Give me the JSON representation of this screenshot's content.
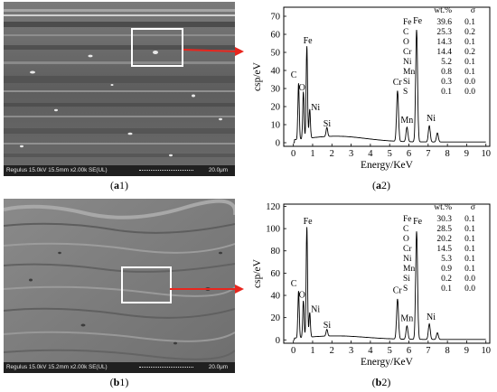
{
  "panels": {
    "a1": {
      "label": "(a1)",
      "label_letter": "a",
      "label_num": "1",
      "sem_info": "Regulus 15.0kV 15.5mm x2.00k SE(UL)",
      "scale": "20.0μm"
    },
    "a2": {
      "label": "(a2)",
      "label_letter": "a",
      "label_num": "2"
    },
    "b1": {
      "label": "(b1)",
      "label_letter": "b",
      "label_num": "1",
      "sem_info": "Regulus 15.0kV 15.2mm x2.00k SE(UL)",
      "scale": "20.0μm"
    },
    "b2": {
      "label": "(b2)",
      "label_letter": "b",
      "label_num": "2"
    }
  },
  "colors": {
    "arrow": "#e8261e",
    "roi": "#ffffff",
    "sem_bg": "#6b6b6b"
  },
  "chart_data": [
    {
      "id": "a2",
      "type": "line",
      "xlabel": "Energy/KeV",
      "ylabel": "csp/eV",
      "xlim": [
        -0.5,
        10.2
      ],
      "ylim": [
        -2,
        75
      ],
      "xticks": [
        0,
        1,
        2,
        3,
        4,
        5,
        6,
        7,
        8,
        9,
        10
      ],
      "yticks": [
        0,
        10,
        20,
        30,
        40,
        50,
        60,
        70
      ],
      "peaks": [
        {
          "label": "C",
          "x": 0.27,
          "y": 31,
          "w": 0.05
        },
        {
          "label": "O",
          "x": 0.52,
          "y": 26,
          "w": 0.05
        },
        {
          "label": "Fe",
          "x": 0.7,
          "y": 51,
          "w": 0.05
        },
        {
          "label": "Ni",
          "x": 0.85,
          "y": 16,
          "w": 0.05
        },
        {
          "label": "Si",
          "x": 1.74,
          "y": 5,
          "w": 0.06
        },
        {
          "label": "Cr",
          "x": 5.41,
          "y": 28,
          "w": 0.07
        },
        {
          "label": "Mn",
          "x": 5.9,
          "y": 8,
          "w": 0.07
        },
        {
          "label": "Fe",
          "x": 6.4,
          "y": 62,
          "w": 0.07
        },
        {
          "label": "Ni",
          "x": 7.06,
          "y": 9,
          "w": 0.07
        },
        {
          "label": "",
          "x": 7.48,
          "y": 5,
          "w": 0.07
        }
      ],
      "peak_labels": [
        {
          "text": "C",
          "x": 0.02,
          "y": 36
        },
        {
          "text": "O",
          "x": 0.45,
          "y": 29
        },
        {
          "text": "Fe",
          "x": 0.75,
          "y": 55
        },
        {
          "text": "Ni",
          "x": 1.15,
          "y": 18
        },
        {
          "text": "Si",
          "x": 1.75,
          "y": 9
        },
        {
          "text": "Cr",
          "x": 5.4,
          "y": 32
        },
        {
          "text": "Mn",
          "x": 5.9,
          "y": 11
        },
        {
          "text": "Fe",
          "x": 6.45,
          "y": 66
        },
        {
          "text": "Ni",
          "x": 7.15,
          "y": 12
        }
      ],
      "composition": {
        "headers": [
          "wt.%",
          "σ"
        ],
        "rows": [
          {
            "element": "Fe",
            "wt": "39.6",
            "sigma": "0.1"
          },
          {
            "element": "C",
            "wt": "25.3",
            "sigma": "0.2"
          },
          {
            "element": "O",
            "wt": "14.3",
            "sigma": "0.1"
          },
          {
            "element": "Cr",
            "wt": "14.4",
            "sigma": "0.2"
          },
          {
            "element": "Ni",
            "wt": "5.2",
            "sigma": "0.1"
          },
          {
            "element": "Mn",
            "wt": "0.8",
            "sigma": "0.1"
          },
          {
            "element": "Si",
            "wt": "0.3",
            "sigma": "0.0"
          },
          {
            "element": "S",
            "wt": "0.1",
            "sigma": "0.0"
          }
        ]
      }
    },
    {
      "id": "b2",
      "type": "line",
      "xlabel": "Energy/KeV",
      "ylabel": "csp/eV",
      "xlim": [
        -0.5,
        10.2
      ],
      "ylim": [
        -3,
        122
      ],
      "xticks": [
        0,
        1,
        2,
        3,
        4,
        5,
        6,
        7,
        8,
        9,
        10
      ],
      "yticks": [
        0,
        20,
        40,
        60,
        80,
        100,
        120
      ],
      "peaks": [
        {
          "label": "C",
          "x": 0.27,
          "y": 42,
          "w": 0.05
        },
        {
          "label": "O",
          "x": 0.52,
          "y": 33,
          "w": 0.05
        },
        {
          "label": "Fe",
          "x": 0.7,
          "y": 99,
          "w": 0.05
        },
        {
          "label": "Ni",
          "x": 0.85,
          "y": 22,
          "w": 0.05
        },
        {
          "label": "Si",
          "x": 1.74,
          "y": 6,
          "w": 0.06
        },
        {
          "label": "Cr",
          "x": 5.41,
          "y": 36,
          "w": 0.07
        },
        {
          "label": "Mn",
          "x": 5.9,
          "y": 12,
          "w": 0.07
        },
        {
          "label": "Fe",
          "x": 6.4,
          "y": 97,
          "w": 0.07
        },
        {
          "label": "Ni",
          "x": 7.06,
          "y": 14,
          "w": 0.07
        },
        {
          "label": "",
          "x": 7.48,
          "y": 6,
          "w": 0.07
        }
      ],
      "peak_labels": [
        {
          "text": "C",
          "x": 0.02,
          "y": 48
        },
        {
          "text": "O",
          "x": 0.45,
          "y": 38
        },
        {
          "text": "Fe",
          "x": 0.75,
          "y": 104
        },
        {
          "text": "Ni",
          "x": 1.15,
          "y": 25
        },
        {
          "text": "Si",
          "x": 1.75,
          "y": 11
        },
        {
          "text": "Cr",
          "x": 5.4,
          "y": 42
        },
        {
          "text": "Mn",
          "x": 5.9,
          "y": 17
        },
        {
          "text": "Fe",
          "x": 6.45,
          "y": 104
        },
        {
          "text": "Ni",
          "x": 7.15,
          "y": 18
        }
      ],
      "composition": {
        "headers": [
          "wt.%",
          "σ"
        ],
        "rows": [
          {
            "element": "Fe",
            "wt": "30.3",
            "sigma": "0.1"
          },
          {
            "element": "C",
            "wt": "28.5",
            "sigma": "0.1"
          },
          {
            "element": "O",
            "wt": "20.2",
            "sigma": "0.1"
          },
          {
            "element": "Cr",
            "wt": "14.5",
            "sigma": "0.1"
          },
          {
            "element": "Ni",
            "wt": "5.3",
            "sigma": "0.1"
          },
          {
            "element": "Mn",
            "wt": "0.9",
            "sigma": "0.1"
          },
          {
            "element": "Si",
            "wt": "0.2",
            "sigma": "0.0"
          },
          {
            "element": "S",
            "wt": "0.1",
            "sigma": "0.0"
          }
        ]
      }
    }
  ]
}
